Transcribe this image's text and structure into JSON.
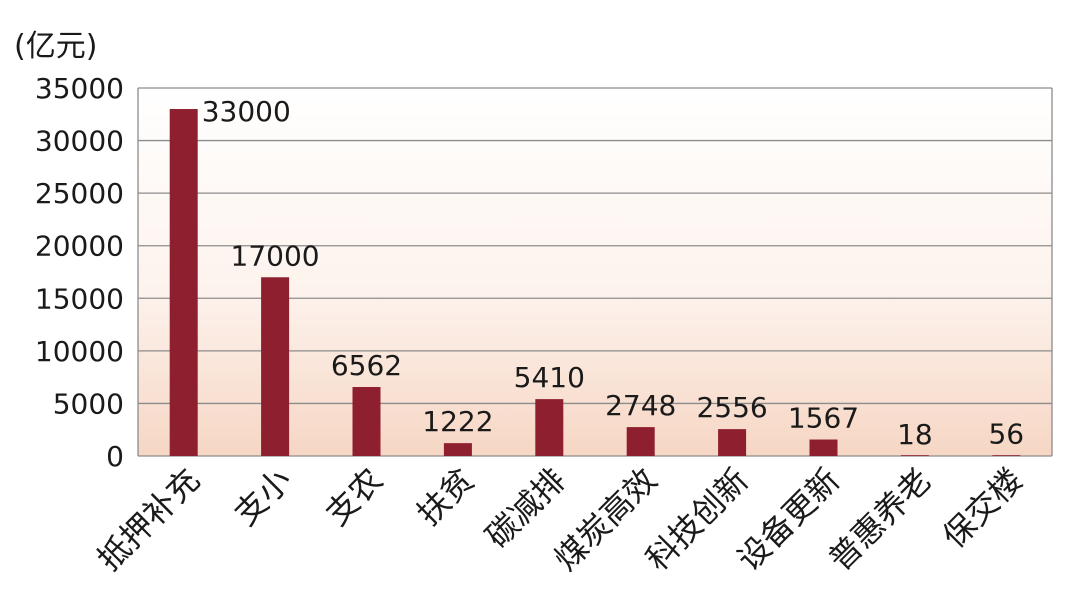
{
  "chart_data": {
    "type": "bar",
    "unit": "(亿元)",
    "categories": [
      "抵押补充",
      "支小",
      "支农",
      "扶贫",
      "碳减排",
      "煤炭高效",
      "科技创新",
      "设备更新",
      "普惠养老",
      "保交楼"
    ],
    "values": [
      33000,
      17000,
      6562,
      1222,
      5410,
      2748,
      2556,
      1567,
      18,
      56
    ],
    "data_labels": [
      "33000",
      "17000",
      "6562",
      "1222",
      "5410",
      "2748",
      "2556",
      "1567",
      "18",
      "56"
    ],
    "yticks": [
      0,
      5000,
      10000,
      15000,
      20000,
      25000,
      30000,
      35000
    ],
    "ylim": [
      0,
      35000
    ],
    "title": "",
    "xlabel": "",
    "ylabel": "(亿元)",
    "grid": true,
    "colors": {
      "bar": "#8e1f2f",
      "grid": "#8c8c8c",
      "bg_top": "#ffffff",
      "bg_bottom": "#f6d6c4"
    }
  }
}
